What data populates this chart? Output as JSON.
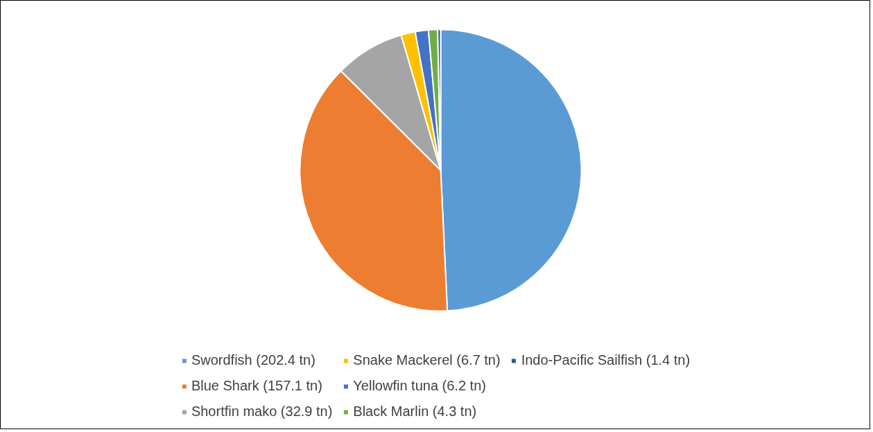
{
  "chart_data": {
    "type": "pie",
    "categories": [
      "Swordfish (202.4 tn)",
      "Blue Shark (157.1 tn)",
      "Shortfin mako (32.9 tn)",
      "Snake Mackerel (6.7 tn)",
      "Yellowfin tuna (6.2 tn)",
      "Black Marlin (4.3 tn)",
      "Indo-Pacific Sailfish (1.4 tn)"
    ],
    "values": [
      202.4,
      157.1,
      32.9,
      6.7,
      6.2,
      4.3,
      1.4
    ],
    "colors": [
      "#5b9bd5",
      "#ed7d31",
      "#a5a5a5",
      "#ffc000",
      "#4472c4",
      "#70ad47",
      "#255e91"
    ],
    "legend": "bottom"
  }
}
